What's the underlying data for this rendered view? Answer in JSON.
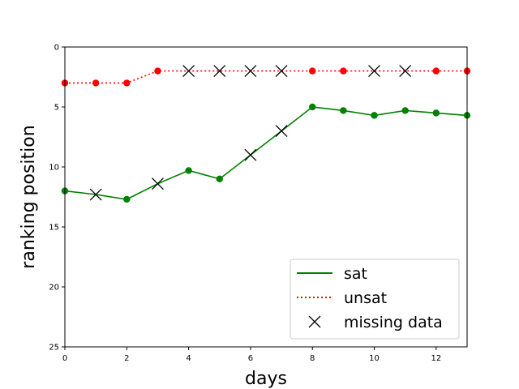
{
  "chart_data": {
    "type": "line",
    "title": "",
    "xlabel": "days",
    "ylabel": "ranking position",
    "xlim": [
      0,
      13
    ],
    "ylim": [
      25,
      0
    ],
    "y_inverted": true,
    "xticks": [
      "0",
      "2",
      "4",
      "6",
      "8",
      "10",
      "12"
    ],
    "yticks": [
      "0",
      "5",
      "10",
      "15",
      "20",
      "25"
    ],
    "grid": false,
    "legend_position": "lower-right",
    "series": [
      {
        "name": "sat",
        "color": "#008000",
        "line_style": "solid",
        "x": [
          0,
          1,
          2,
          3,
          4,
          5,
          6,
          7,
          8,
          9,
          10,
          11,
          12,
          13
        ],
        "y": [
          12,
          12.3,
          12.7,
          11.4,
          10.3,
          11,
          9,
          7,
          5,
          5.3,
          5.7,
          5.3,
          5.5,
          5.7
        ],
        "missing": [
          false,
          true,
          false,
          true,
          false,
          false,
          true,
          true,
          false,
          false,
          false,
          false,
          false,
          false
        ]
      },
      {
        "name": "unsat",
        "color": "#ff0000",
        "line_style": "dotted",
        "x": [
          0,
          1,
          2,
          3,
          4,
          5,
          6,
          7,
          8,
          9,
          10,
          11,
          12,
          13
        ],
        "y": [
          3,
          3,
          3,
          2,
          2,
          2,
          2,
          2,
          2,
          2,
          2,
          2,
          2,
          2
        ],
        "missing": [
          false,
          false,
          false,
          false,
          true,
          true,
          true,
          true,
          false,
          false,
          true,
          true,
          false,
          false
        ]
      }
    ],
    "missing_label": "missing data"
  }
}
